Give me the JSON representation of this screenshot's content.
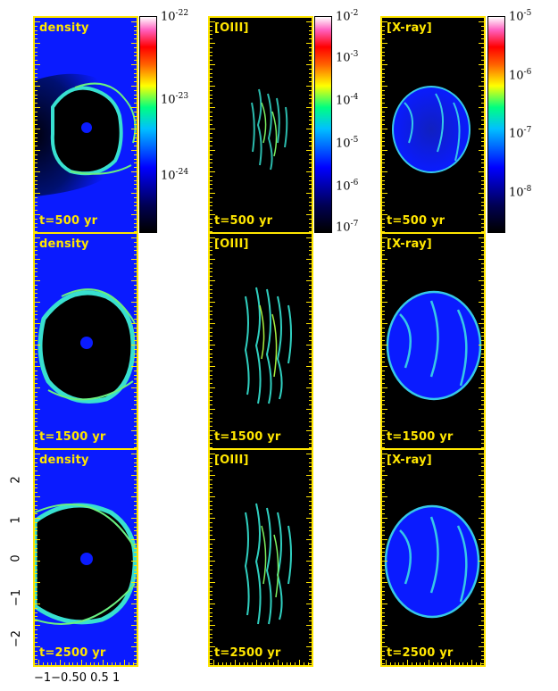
{
  "columns": [
    {
      "label": "density",
      "colorbar": {
        "labels": [
          "10",
          "10",
          "10"
        ],
        "exponents": [
          "-22",
          "-23",
          "-24"
        ]
      }
    },
    {
      "label": "[OIII]",
      "colorbar": {
        "labels": [
          "10",
          "10",
          "10",
          "10",
          "10",
          "10"
        ],
        "exponents": [
          "-2",
          "-3",
          "-4",
          "-5",
          "-6",
          "-7"
        ]
      }
    },
    {
      "label": "[X-ray]",
      "colorbar": {
        "labels": [
          "10",
          "10",
          "10",
          "10",
          "10"
        ],
        "exponents": [
          "-5",
          "-6",
          "-7",
          "-8",
          ""
        ]
      }
    }
  ],
  "times": [
    "t=500 yr",
    "t=1500 yr",
    "t=2500 yr"
  ],
  "y_axis": {
    "ticks": [
      "2",
      "1",
      "0",
      "−1",
      "−2"
    ]
  },
  "x_axis": {
    "ticks": [
      "−1",
      "−0.5",
      "0",
      "0.5",
      "1"
    ],
    "text": "−1−0.50 0.5 1"
  },
  "colors": {
    "frame": "#ffe600",
    "background_density": "#0a1bff",
    "background_emission": "#000000"
  }
}
